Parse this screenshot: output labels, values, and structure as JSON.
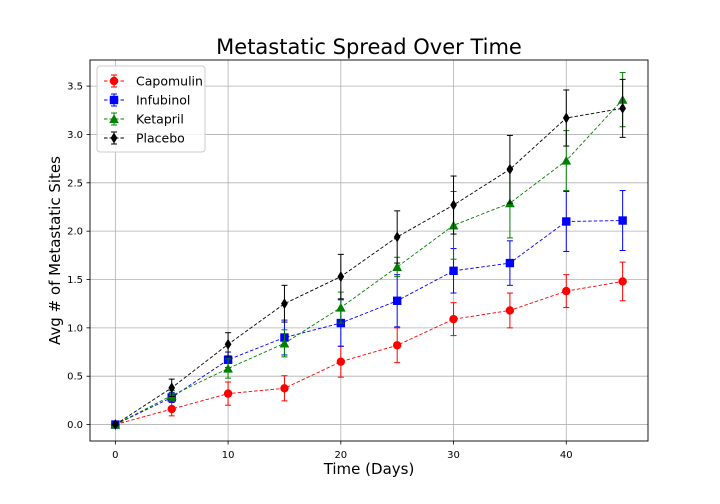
{
  "chart_data": {
    "type": "line",
    "title": "Metastatic Spread Over Time",
    "xlabel": "Time (Days)",
    "ylabel": "Avg # of Metastatic Sites",
    "xlim": [
      -2.25,
      47.25
    ],
    "ylim": [
      -0.17,
      3.77
    ],
    "xticks": [
      0,
      10,
      20,
      30,
      40
    ],
    "yticks": [
      0.0,
      0.5,
      1.0,
      1.5,
      2.0,
      2.5,
      3.0,
      3.5
    ],
    "ytick_labels": [
      "0.0",
      "0.5",
      "1.0",
      "1.5",
      "2.0",
      "2.5",
      "3.0",
      "3.5"
    ],
    "grid": true,
    "legend_position": "top-left",
    "x": [
      0,
      5,
      10,
      15,
      20,
      25,
      30,
      35,
      40,
      45
    ],
    "series": [
      {
        "name": "Capomulin",
        "color": "#ff0000",
        "marker": "circle",
        "values": [
          0.0,
          0.16,
          0.32,
          0.375,
          0.65,
          0.82,
          1.09,
          1.18,
          1.38,
          1.48
        ],
        "errors": [
          0.0,
          0.07,
          0.12,
          0.13,
          0.16,
          0.18,
          0.17,
          0.18,
          0.17,
          0.2
        ]
      },
      {
        "name": "Infubinol",
        "color": "#0000ff",
        "marker": "square",
        "values": [
          0.0,
          0.28,
          0.67,
          0.9,
          1.05,
          1.28,
          1.59,
          1.67,
          2.1,
          2.11
        ],
        "errors": [
          0.0,
          0.05,
          0.08,
          0.18,
          0.24,
          0.27,
          0.23,
          0.23,
          0.31,
          0.31
        ]
      },
      {
        "name": "Ketapril",
        "color": "#008000",
        "marker": "triangle",
        "values": [
          0.0,
          0.3,
          0.58,
          0.84,
          1.21,
          1.63,
          2.06,
          2.29,
          2.73,
          3.36
        ],
        "errors": [
          0.0,
          0.05,
          0.1,
          0.14,
          0.16,
          0.1,
          0.35,
          0.36,
          0.31,
          0.28
        ]
      },
      {
        "name": "Placebo",
        "color": "#000000",
        "marker": "diamond",
        "values": [
          0.0,
          0.38,
          0.83,
          1.25,
          1.53,
          1.94,
          2.27,
          2.64,
          3.17,
          3.27
        ],
        "errors": [
          0.0,
          0.09,
          0.12,
          0.19,
          0.23,
          0.27,
          0.3,
          0.35,
          0.29,
          0.3
        ]
      }
    ]
  }
}
